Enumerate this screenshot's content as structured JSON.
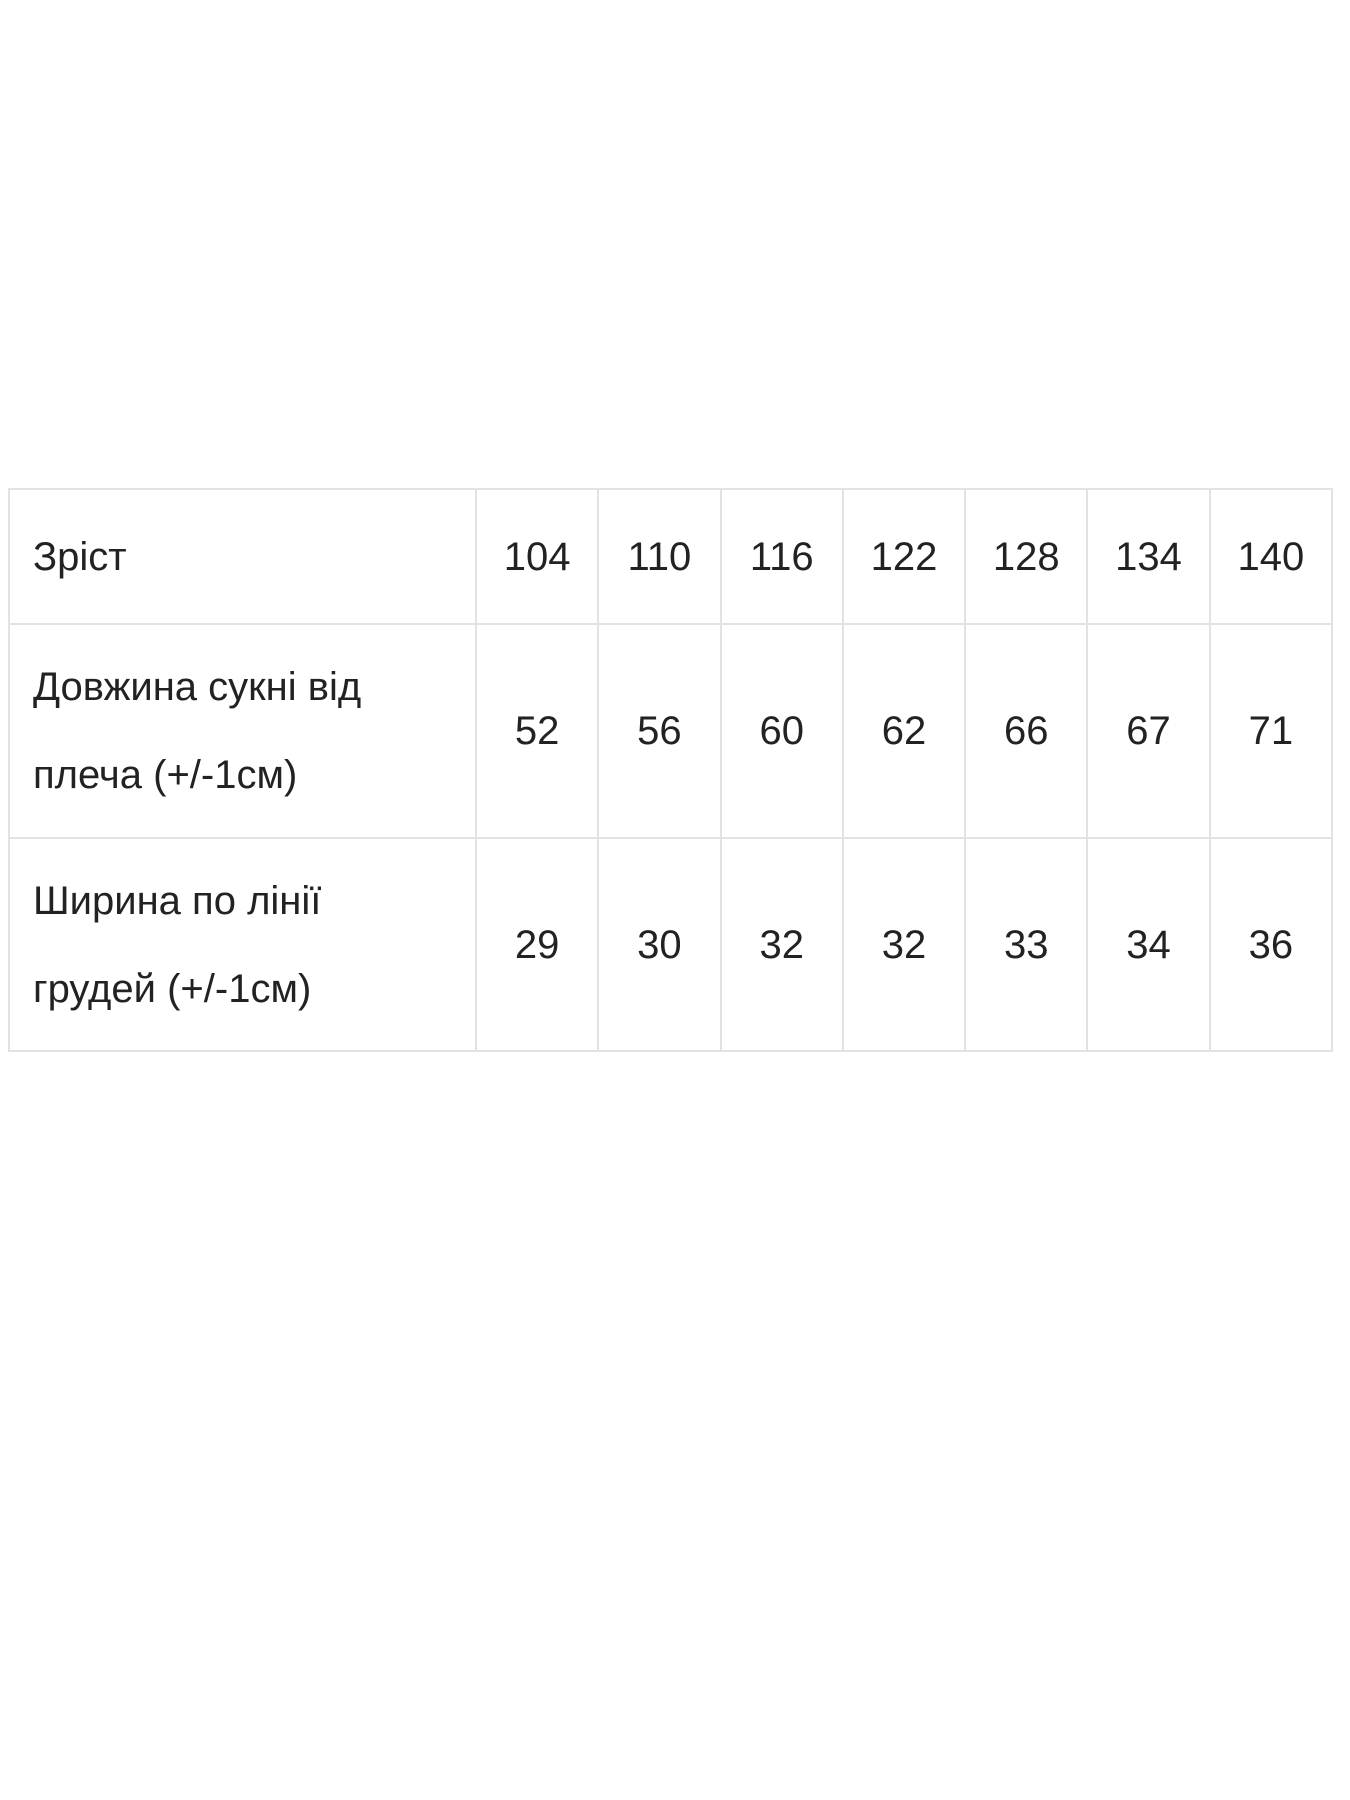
{
  "colors": {
    "background": "#ffffff",
    "text": "#222222",
    "border": "#e2e2e2"
  },
  "chart_data": {
    "type": "table",
    "language": "uk",
    "rows": [
      {
        "label": "Зріст",
        "values": [
          "104",
          "110",
          "116",
          "122",
          "128",
          "134",
          "140"
        ]
      },
      {
        "label": "Довжина сукні від плеча (+/-1см)",
        "values": [
          "52",
          "56",
          "60",
          "62",
          "66",
          "67",
          "71"
        ]
      },
      {
        "label": "Ширина по лінії грудей (+/-1см)",
        "values": [
          "29",
          "30",
          "32",
          "32",
          "33",
          "34",
          "36"
        ]
      }
    ]
  }
}
